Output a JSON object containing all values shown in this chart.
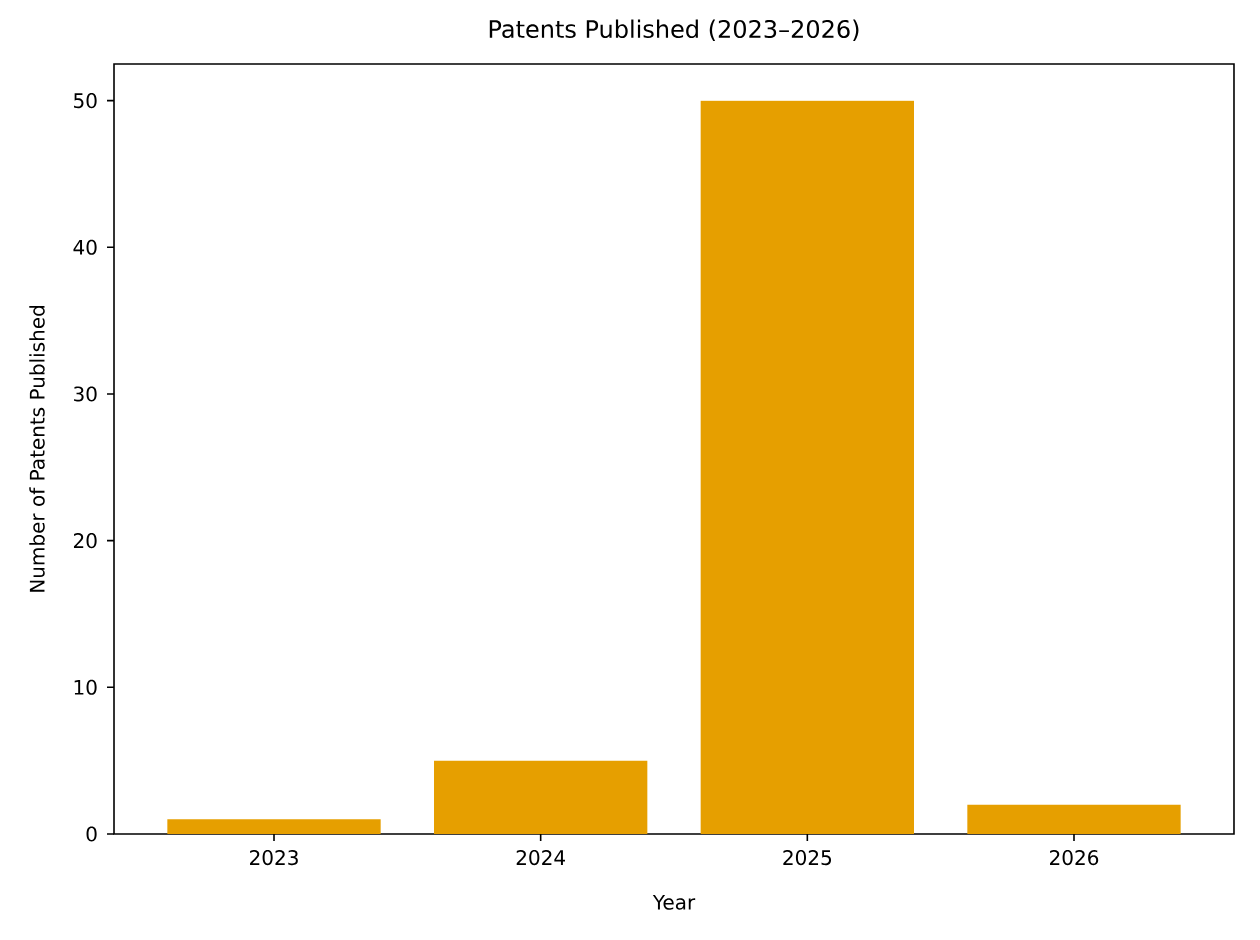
{
  "chart_data": {
    "type": "bar",
    "title": "Patents Published (2023–2026)",
    "xlabel": "Year",
    "ylabel": "Number of Patents Published",
    "categories": [
      "2023",
      "2024",
      "2025",
      "2026"
    ],
    "values": [
      1,
      5,
      50,
      2
    ],
    "color": "#e69f00",
    "ylim": [
      0,
      52.5
    ],
    "yticks": [
      0,
      10,
      20,
      30,
      40,
      50
    ]
  }
}
